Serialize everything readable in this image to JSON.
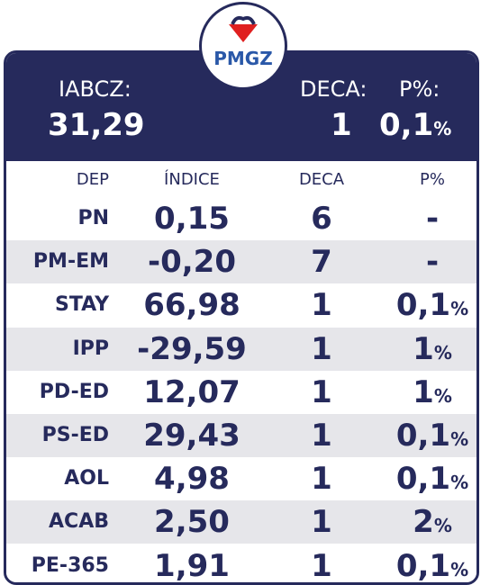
{
  "logo": "PMGZ",
  "header": {
    "left": {
      "label": "IABCZ:",
      "value": "31,29"
    },
    "deca": {
      "label": "DECA:",
      "value": "1"
    },
    "p": {
      "label": "P%:",
      "number": "0,1",
      "unit": "%"
    }
  },
  "table": {
    "columns": [
      "DEP",
      "ÍNDICE",
      "DECA",
      "P%"
    ],
    "rows": [
      {
        "dep": "PN",
        "indice": "0,15",
        "deca": "6",
        "p": {
          "number": "-"
        }
      },
      {
        "dep": "PM-EM",
        "indice": "-0,20",
        "deca": "7",
        "p": {
          "number": "-"
        }
      },
      {
        "dep": "STAY",
        "indice": "66,98",
        "deca": "1",
        "p": {
          "number": "0,1",
          "unit": "%"
        }
      },
      {
        "dep": "IPP",
        "indice": "-29,59",
        "deca": "1",
        "p": {
          "number": "1",
          "unit": "%"
        }
      },
      {
        "dep": "PD-ED",
        "indice": "12,07",
        "deca": "1",
        "p": {
          "number": "1",
          "unit": "%"
        }
      },
      {
        "dep": "PS-ED",
        "indice": "29,43",
        "deca": "1",
        "p": {
          "number": "0,1",
          "unit": "%"
        }
      },
      {
        "dep": "AOL",
        "indice": "4,98",
        "deca": "1",
        "p": {
          "number": "0,1",
          "unit": "%"
        }
      },
      {
        "dep": "ACAB",
        "indice": "2,50",
        "deca": "1",
        "p": {
          "number": "2",
          "unit": "%"
        }
      },
      {
        "dep": "PE-365",
        "indice": "1,91",
        "deca": "1",
        "p": {
          "number": "0,1",
          "unit": "%"
        }
      }
    ]
  }
}
